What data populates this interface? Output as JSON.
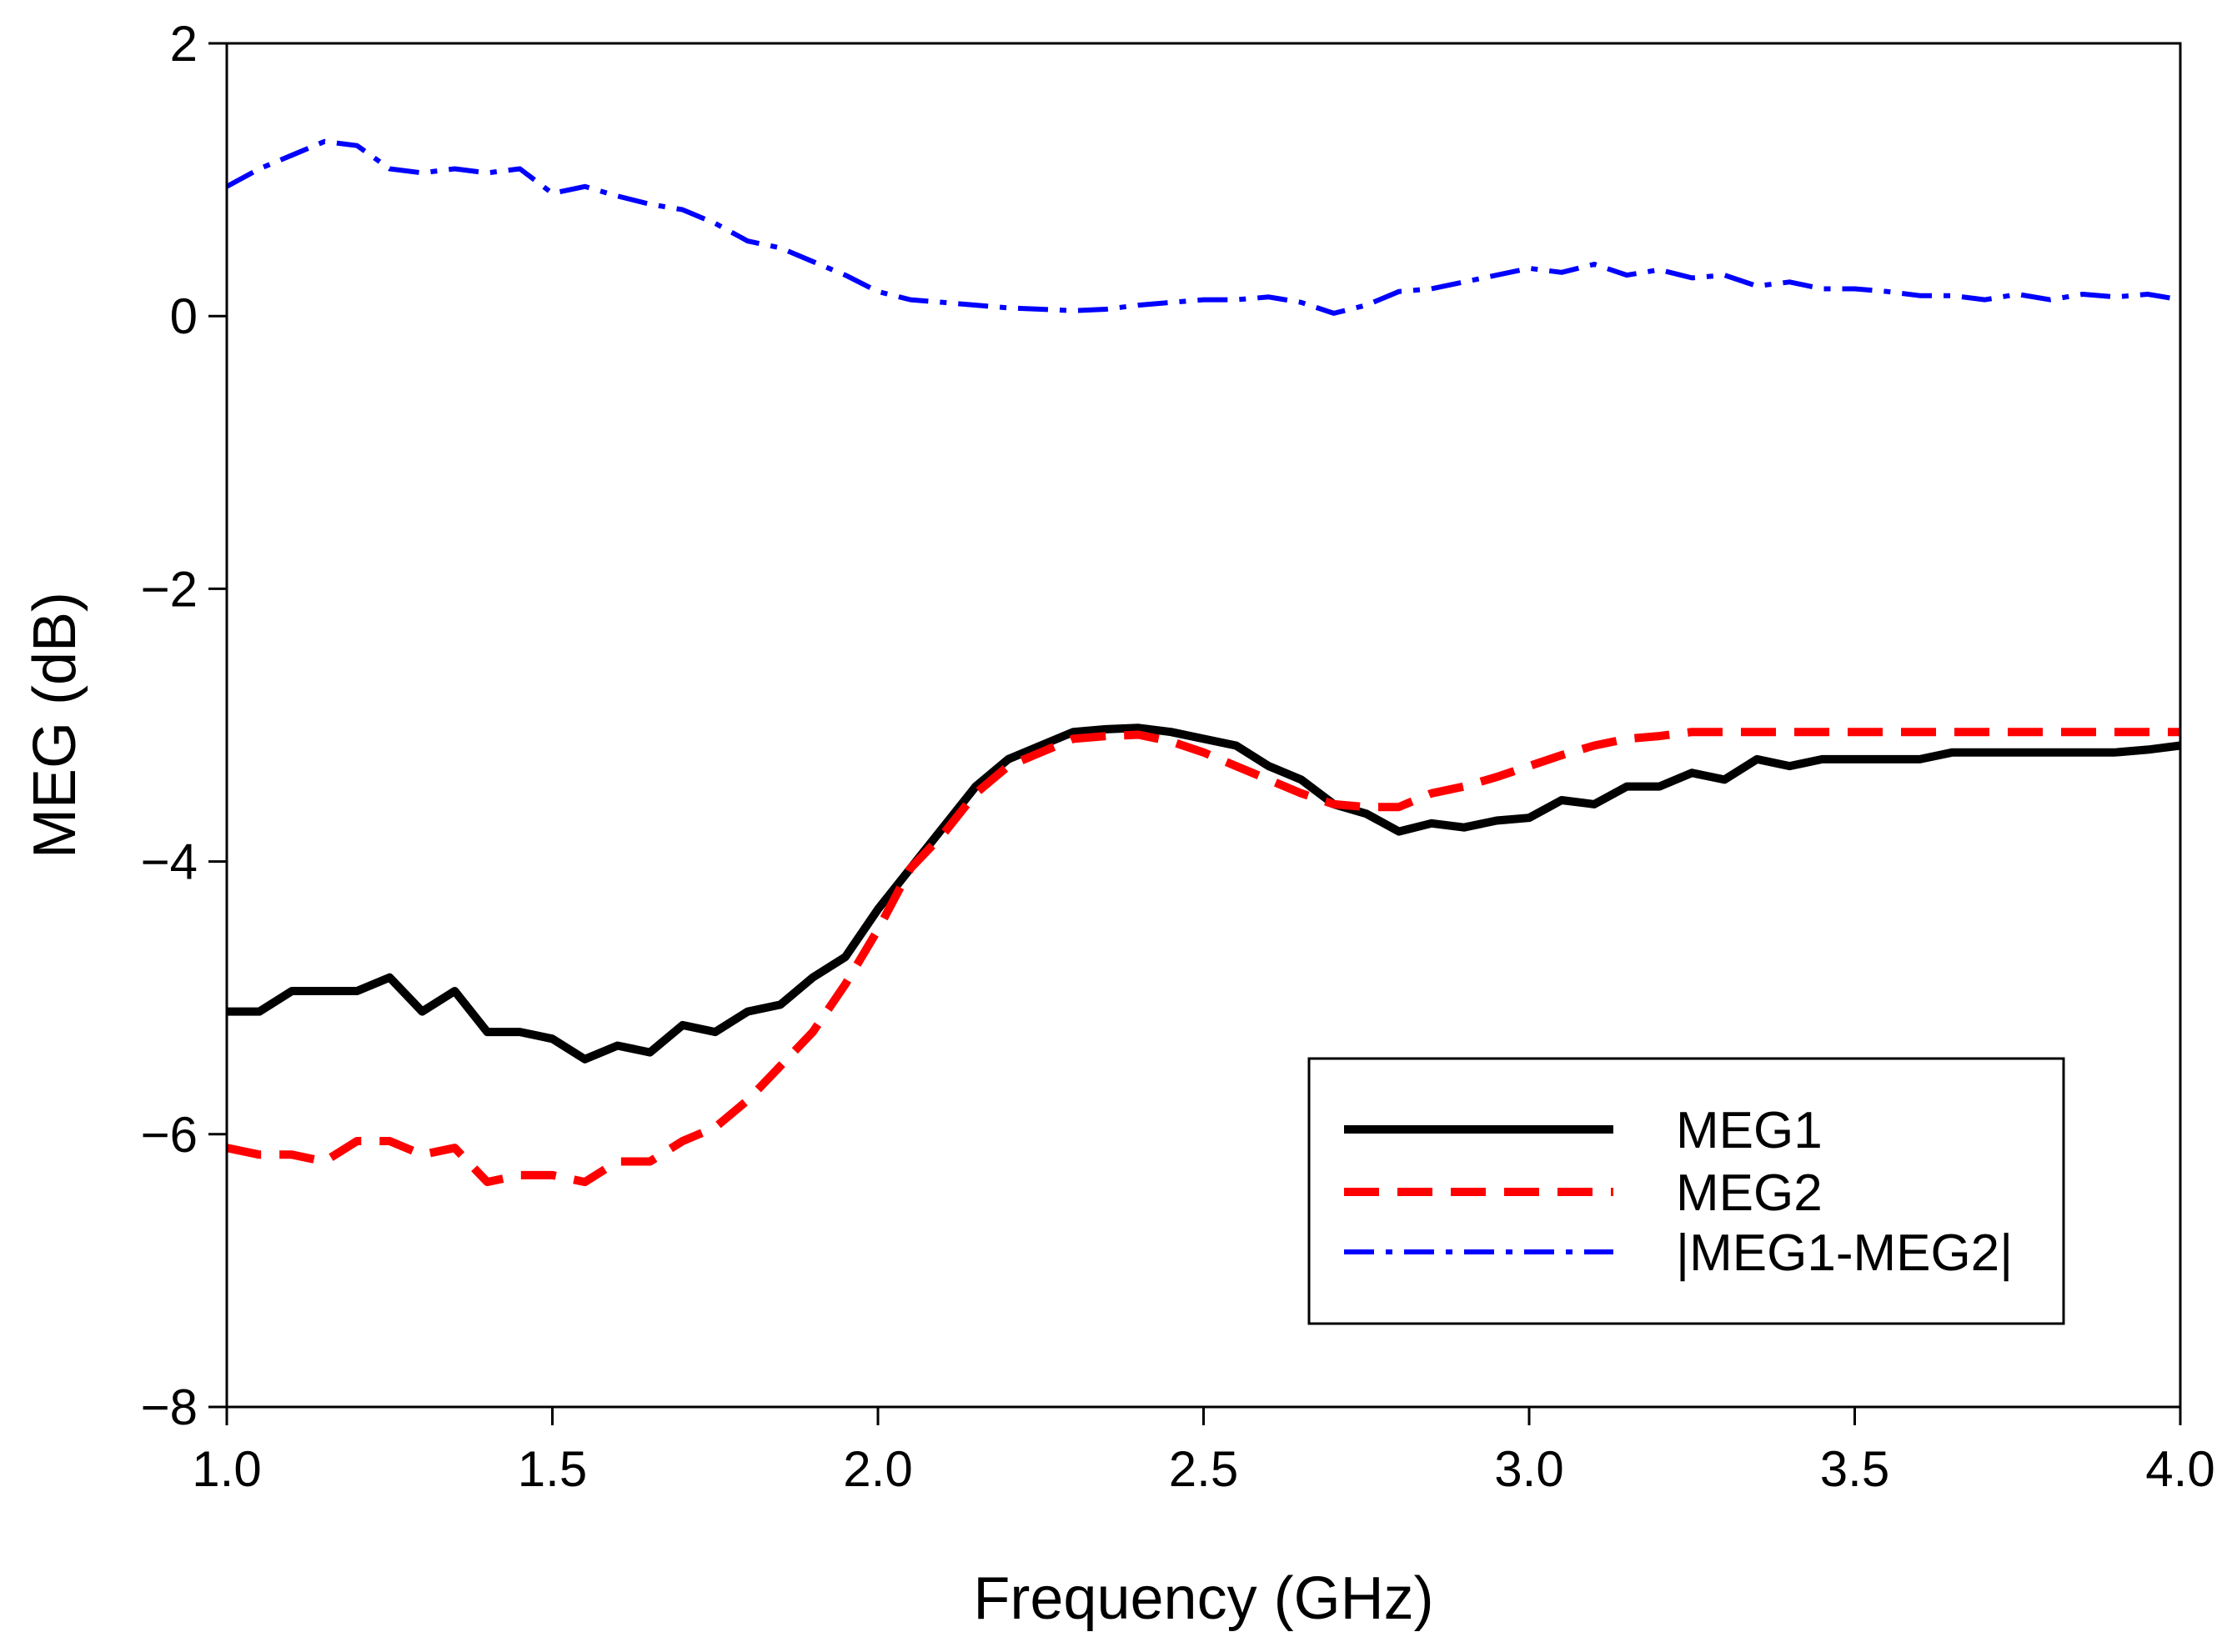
{
  "chart_data": {
    "type": "line",
    "title": "",
    "xlabel": "Frequency (GHz)",
    "ylabel": "MEG (dB)",
    "xlim": [
      1.0,
      4.0
    ],
    "ylim": [
      -8,
      2
    ],
    "xticks": [
      1.0,
      1.5,
      2.0,
      2.5,
      3.0,
      3.5,
      4.0
    ],
    "xtick_labels": [
      "1.0",
      "1.5",
      "2.0",
      "2.5",
      "3.0",
      "3.5",
      "4.0"
    ],
    "yticks": [
      -8,
      -6,
      -4,
      -2,
      0,
      2
    ],
    "ytick_labels": [
      "−8",
      "−6",
      "−4",
      "−2",
      "0",
      "2"
    ],
    "grid": false,
    "legend_position": "bottom-right",
    "x": [
      1.0,
      1.05,
      1.1,
      1.15,
      1.2,
      1.25,
      1.3,
      1.35,
      1.4,
      1.45,
      1.5,
      1.55,
      1.6,
      1.65,
      1.7,
      1.75,
      1.8,
      1.85,
      1.9,
      1.95,
      2.0,
      2.05,
      2.1,
      2.15,
      2.2,
      2.25,
      2.3,
      2.35,
      2.4,
      2.45,
      2.5,
      2.55,
      2.6,
      2.65,
      2.7,
      2.75,
      2.8,
      2.85,
      2.9,
      2.95,
      3.0,
      3.05,
      3.1,
      3.15,
      3.2,
      3.25,
      3.3,
      3.35,
      3.4,
      3.45,
      3.5,
      3.55,
      3.6,
      3.65,
      3.7,
      3.75,
      3.8,
      3.85,
      3.9,
      3.95,
      4.0
    ],
    "series": [
      {
        "name": "MEG1",
        "color": "#000000",
        "dash": "solid",
        "values": [
          -5.1,
          -5.1,
          -4.95,
          -4.95,
          -4.95,
          -4.85,
          -5.1,
          -4.95,
          -5.25,
          -5.25,
          -5.3,
          -5.45,
          -5.35,
          -5.4,
          -5.2,
          -5.25,
          -5.1,
          -5.05,
          -4.85,
          -4.7,
          -4.35,
          -4.05,
          -3.75,
          -3.45,
          -3.25,
          -3.15,
          -3.05,
          -3.03,
          -3.02,
          -3.05,
          -3.1,
          -3.15,
          -3.3,
          -3.4,
          -3.58,
          -3.65,
          -3.78,
          -3.72,
          -3.75,
          -3.7,
          -3.68,
          -3.55,
          -3.58,
          -3.45,
          -3.45,
          -3.35,
          -3.4,
          -3.25,
          -3.3,
          -3.25,
          -3.25,
          -3.25,
          -3.25,
          -3.2,
          -3.2,
          -3.2,
          -3.2,
          -3.2,
          -3.2,
          -3.18,
          -3.15
        ]
      },
      {
        "name": "MEG2",
        "color": "#ff0000",
        "dash": "dashed",
        "values": [
          -6.1,
          -6.15,
          -6.15,
          -6.2,
          -6.05,
          -6.05,
          -6.15,
          -6.1,
          -6.35,
          -6.3,
          -6.3,
          -6.35,
          -6.2,
          -6.2,
          -6.05,
          -5.95,
          -5.75,
          -5.5,
          -5.25,
          -4.9,
          -4.5,
          -4.05,
          -3.8,
          -3.5,
          -3.3,
          -3.2,
          -3.1,
          -3.08,
          -3.07,
          -3.12,
          -3.2,
          -3.3,
          -3.4,
          -3.5,
          -3.58,
          -3.6,
          -3.6,
          -3.5,
          -3.45,
          -3.38,
          -3.3,
          -3.22,
          -3.15,
          -3.1,
          -3.08,
          -3.05,
          -3.05,
          -3.05,
          -3.05,
          -3.05,
          -3.05,
          -3.05,
          -3.05,
          -3.05,
          -3.05,
          -3.05,
          -3.05,
          -3.05,
          -3.05,
          -3.05,
          -3.05
        ]
      },
      {
        "name": "|MEG1-MEG2|",
        "color": "#0000ff",
        "dash": "dash-dot",
        "values": [
          0.95,
          1.08,
          1.18,
          1.28,
          1.25,
          1.08,
          1.05,
          1.08,
          1.05,
          1.08,
          0.9,
          0.95,
          0.88,
          0.82,
          0.78,
          0.68,
          0.55,
          0.5,
          0.4,
          0.3,
          0.18,
          0.12,
          0.1,
          0.08,
          0.06,
          0.05,
          0.04,
          0.05,
          0.08,
          0.1,
          0.12,
          0.12,
          0.14,
          0.1,
          0.02,
          0.08,
          0.18,
          0.2,
          0.25,
          0.3,
          0.35,
          0.32,
          0.38,
          0.3,
          0.34,
          0.28,
          0.3,
          0.22,
          0.25,
          0.2,
          0.2,
          0.18,
          0.15,
          0.15,
          0.12,
          0.16,
          0.12,
          0.16,
          0.14,
          0.16,
          0.12
        ]
      }
    ]
  }
}
